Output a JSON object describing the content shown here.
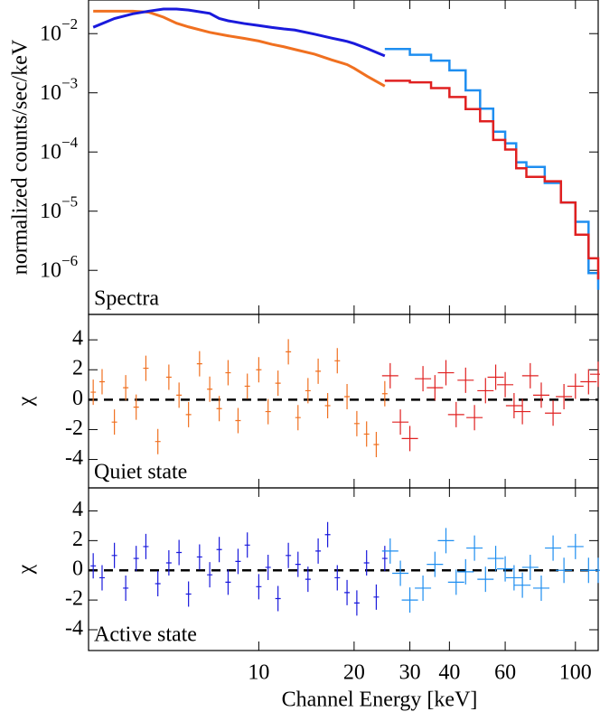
{
  "chart_data": [
    {
      "type": "line",
      "label": "Spectra",
      "ylabel": "normalized counts/sec/keV",
      "xscale": "log",
      "yscale": "log",
      "xlim": [
        2.9,
        118
      ],
      "ylim": [
        1.8e-07,
        0.037
      ],
      "yticks": [
        {
          "value": 0.01,
          "label": "10",
          "exponent": "−2"
        },
        {
          "value": 0.001,
          "label": "10",
          "exponent": "−3"
        },
        {
          "value": 0.0001,
          "label": "10",
          "exponent": "−4"
        },
        {
          "value": 1e-05,
          "label": "10",
          "exponent": "−5"
        },
        {
          "value": 1e-06,
          "label": "10",
          "exponent": "−6"
        }
      ],
      "series": [
        {
          "color": "#1e8ef0",
          "style": "step",
          "x": [
            25,
            30,
            35,
            40,
            45,
            50,
            55,
            60,
            65,
            70,
            80,
            90,
            100,
            110,
            118
          ],
          "values": [
            0.0055,
            0.0044,
            0.0035,
            0.0024,
            0.0011,
            0.00054,
            0.00022,
            0.00014,
            6.7e-05,
            5.6e-05,
            3e-05,
            1.4e-05,
            6.6e-06,
            9e-07,
            4.7e-07
          ]
        },
        {
          "color": "#e02020",
          "style": "step",
          "x": [
            25,
            30,
            35,
            40,
            45,
            50,
            55,
            60,
            65,
            70,
            80,
            90,
            100,
            110,
            118
          ],
          "values": [
            0.0016,
            0.0015,
            0.0012,
            0.00085,
            0.00053,
            0.00033,
            0.00016,
            0.00011,
            5.3e-05,
            3.8e-05,
            3.2e-05,
            1.4e-05,
            4e-06,
            1.6e-06,
            7e-07
          ]
        },
        {
          "color": "#f07020",
          "style": "points",
          "x": [
            3,
            3.5,
            4,
            4.5,
            5,
            5.5,
            6,
            7,
            8,
            9,
            10,
            11,
            12,
            13,
            15,
            17,
            19,
            20,
            22,
            25
          ],
          "values": [
            0.024,
            0.024,
            0.024,
            0.023,
            0.019,
            0.015,
            0.013,
            0.0105,
            0.0092,
            0.0083,
            0.0075,
            0.0066,
            0.006,
            0.0054,
            0.0045,
            0.0036,
            0.003,
            0.0026,
            0.0019,
            0.0013
          ]
        },
        {
          "color": "#1a1adc",
          "style": "points",
          "x": [
            3,
            3.5,
            4,
            4.5,
            5,
            5.5,
            6,
            7,
            7.5,
            8,
            9,
            10,
            11,
            12,
            13,
            15,
            17,
            19,
            20,
            22,
            25
          ],
          "values": [
            0.0128,
            0.018,
            0.0216,
            0.024,
            0.026,
            0.026,
            0.025,
            0.022,
            0.018,
            0.0165,
            0.0148,
            0.0137,
            0.0127,
            0.012,
            0.0115,
            0.0098,
            0.0084,
            0.0074,
            0.0068,
            0.0056,
            0.0042
          ]
        }
      ]
    },
    {
      "type": "scatter",
      "label": "Quiet state",
      "ylabel": "χ",
      "xscale": "log",
      "xlim": [
        2.9,
        118
      ],
      "ylim": [
        -5.9,
        5.7
      ],
      "yticks": [
        4,
        2,
        0,
        -2,
        -4
      ],
      "series": [
        {
          "color": "#f07020",
          "x": [
            3,
            3.2,
            3.5,
            3.8,
            4.1,
            4.4,
            4.8,
            5.2,
            5.6,
            6,
            6.5,
            7,
            7.5,
            8,
            8.6,
            9.2,
            10,
            10.7,
            11.5,
            12.4,
            13.3,
            14.3,
            15.4,
            16.5,
            17.7,
            19,
            20.4,
            21.9,
            23.5,
            25
          ],
          "values": [
            0.5,
            1.2,
            -1.5,
            0.8,
            -0.5,
            2.1,
            -2.8,
            1.5,
            0.3,
            -1.0,
            2.4,
            0.7,
            -0.6,
            1.8,
            -1.4,
            0.9,
            2.0,
            -0.8,
            1.1,
            3.2,
            -1.2,
            0.6,
            1.9,
            -0.4,
            2.6,
            0.2,
            -1.6,
            -2.3,
            -3.0,
            0.4
          ]
        },
        {
          "color": "#e02020",
          "x": [
            26,
            28,
            30,
            33,
            36,
            39,
            42,
            45,
            48,
            52,
            56,
            60,
            64,
            68,
            72,
            78,
            85,
            92,
            100,
            110,
            118
          ],
          "values": [
            1.6,
            -1.5,
            -2.6,
            1.4,
            0.8,
            1.8,
            -1.0,
            1.3,
            -1.2,
            0.6,
            1.5,
            1.0,
            -0.4,
            -0.8,
            1.6,
            0.3,
            -0.9,
            0.2,
            0.9,
            1.2,
            1.7
          ]
        }
      ]
    },
    {
      "type": "scatter",
      "label": "Active state",
      "ylabel": "χ",
      "xlabel": "Channel Energy [keV]",
      "xscale": "log",
      "xlim": [
        2.9,
        118
      ],
      "ylim": [
        -5.4,
        5.55
      ],
      "yticks": [
        4,
        2,
        0,
        -2,
        -4
      ],
      "xticks": [
        10,
        20,
        30,
        40,
        60,
        100
      ],
      "series": [
        {
          "color": "#1a1adc",
          "x": [
            3,
            3.2,
            3.5,
            3.8,
            4.1,
            4.4,
            4.8,
            5.2,
            5.6,
            6,
            6.5,
            7,
            7.5,
            8,
            8.6,
            9.2,
            10,
            10.7,
            11.5,
            12.4,
            13.3,
            14.3,
            15.4,
            16.5,
            17.7,
            19,
            20.4,
            21.9,
            23.5,
            25
          ],
          "values": [
            0.3,
            -0.5,
            1.0,
            -1.2,
            0.8,
            1.6,
            -0.9,
            0.5,
            1.2,
            -1.6,
            0.9,
            -0.3,
            1.4,
            -0.8,
            0.6,
            1.7,
            -1.1,
            0.2,
            -1.9,
            1.0,
            0.4,
            -0.6,
            1.3,
            2.4,
            -0.5,
            -1.5,
            -2.2,
            0.5,
            -1.8,
            0.8
          ]
        },
        {
          "color": "#1e8ef0",
          "x": [
            26,
            28,
            30,
            33,
            36,
            39,
            42,
            45,
            48,
            52,
            56,
            60,
            64,
            68,
            72,
            78,
            85,
            92,
            100,
            110,
            118
          ],
          "values": [
            1.3,
            -0.2,
            -2.0,
            -1.2,
            0.4,
            2.0,
            -0.8,
            -0.1,
            1.5,
            -0.6,
            0.8,
            0.1,
            -0.5,
            -1.0,
            0.2,
            -1.2,
            1.5,
            0.0,
            1.6,
            0.0,
            0.0
          ]
        }
      ]
    }
  ]
}
